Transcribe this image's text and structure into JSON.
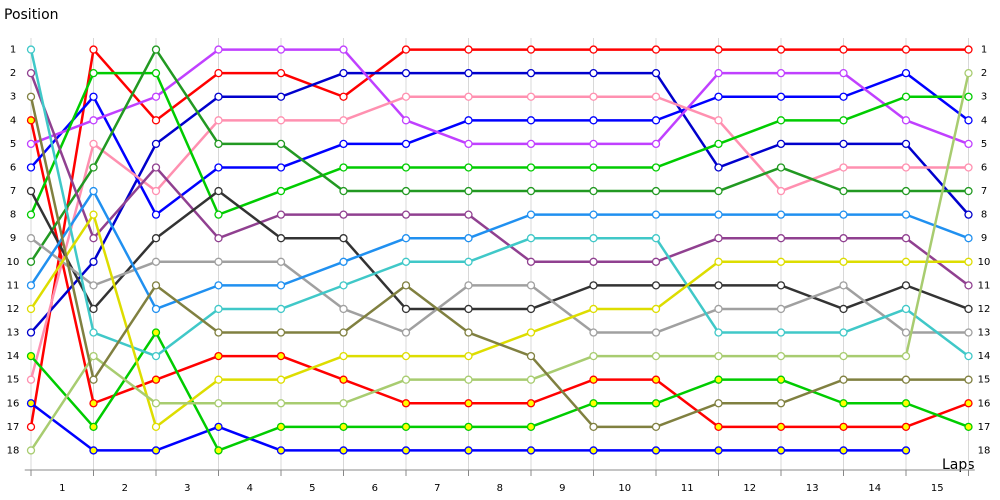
{
  "chart_data": {
    "type": "line",
    "y_label": "Position",
    "x_label": "Laps",
    "x": [
      0,
      1,
      2,
      3,
      4,
      5,
      6,
      7,
      8,
      9,
      10,
      11,
      12,
      13,
      14,
      15
    ],
    "xlim": [
      -0.1,
      15.1
    ],
    "xticks": [
      {
        "value": 0.5,
        "label": "1"
      },
      {
        "value": 1.5,
        "label": "2"
      },
      {
        "value": 2.5,
        "label": "3"
      },
      {
        "value": 3.5,
        "label": "4"
      },
      {
        "value": 4.5,
        "label": "5"
      },
      {
        "value": 5.5,
        "label": "6"
      },
      {
        "value": 6.5,
        "label": "7"
      },
      {
        "value": 7.5,
        "label": "8"
      },
      {
        "value": 8.5,
        "label": "9"
      },
      {
        "value": 9.5,
        "label": "10"
      },
      {
        "value": 10.5,
        "label": "11"
      },
      {
        "value": 11.5,
        "label": "12"
      },
      {
        "value": 12.5,
        "label": "13"
      },
      {
        "value": 13.5,
        "label": "14"
      },
      {
        "value": 14.5,
        "label": "15"
      }
    ],
    "ylim": [
      19,
      0
    ],
    "yticks": [
      1,
      2,
      3,
      4,
      5,
      6,
      7,
      8,
      9,
      10,
      11,
      12,
      13,
      14,
      15,
      16,
      17,
      18
    ],
    "grid": true,
    "series": [
      {
        "color": "#ff0000",
        "marker_color": "#ffffff",
        "values": [
          17,
          1,
          4,
          2,
          2,
          3,
          1,
          1,
          1,
          1,
          1,
          1,
          1,
          1,
          1,
          1
        ]
      },
      {
        "color": "#ff0000",
        "marker_color": "#ffff00",
        "values": [
          4,
          16,
          15,
          14,
          14,
          15,
          16,
          16,
          16,
          15,
          15,
          17,
          17,
          17,
          17,
          16
        ]
      },
      {
        "color": "#0000cc",
        "marker_color": "#ffffff",
        "values": [
          13,
          10,
          5,
          3,
          3,
          2,
          2,
          2,
          2,
          2,
          2,
          6,
          5,
          5,
          5,
          8
        ]
      },
      {
        "color": "#0000ff",
        "marker_color": "#ffffff",
        "values": [
          6,
          3,
          8,
          6,
          6,
          5,
          5,
          4,
          4,
          4,
          4,
          3,
          3,
          3,
          2,
          4
        ]
      },
      {
        "color": "#0000ff",
        "marker_color": "#ffff00",
        "values": [
          16,
          18,
          18,
          17,
          18,
          18,
          18,
          18,
          18,
          18,
          18,
          18,
          18,
          18,
          18,
          null
        ]
      },
      {
        "color": "#c040ff",
        "marker_color": "#ffffff",
        "values": [
          5,
          4,
          3,
          1,
          1,
          1,
          4,
          5,
          5,
          5,
          5,
          2,
          2,
          2,
          4,
          5
        ]
      },
      {
        "color": "#ff90b0",
        "marker_color": "#ffffff",
        "values": [
          15,
          5,
          7,
          4,
          4,
          4,
          3,
          3,
          3,
          3,
          3,
          4,
          7,
          6,
          6,
          6
        ]
      },
      {
        "color": "#00cc00",
        "marker_color": "#ffffff",
        "values": [
          8,
          2,
          2,
          8,
          7,
          6,
          6,
          6,
          6,
          6,
          6,
          5,
          4,
          4,
          3,
          3
        ]
      },
      {
        "color": "#00cc00",
        "marker_color": "#ffff00",
        "values": [
          14,
          17,
          13,
          18,
          17,
          17,
          17,
          17,
          17,
          16,
          16,
          15,
          15,
          16,
          16,
          17
        ]
      },
      {
        "color": "#229922",
        "marker_color": "#ffffff",
        "values": [
          10,
          6,
          1,
          5,
          5,
          7,
          7,
          7,
          7,
          7,
          7,
          7,
          6,
          7,
          7,
          7
        ]
      },
      {
        "color": "#904090",
        "marker_color": "#ffffff",
        "values": [
          2,
          9,
          6,
          9,
          8,
          8,
          8,
          8,
          10,
          10,
          10,
          9,
          9,
          9,
          9,
          11
        ]
      },
      {
        "color": "#333333",
        "marker_color": "#ffffff",
        "values": [
          7,
          12,
          9,
          7,
          9,
          9,
          12,
          12,
          12,
          11,
          11,
          11,
          11,
          12,
          11,
          12
        ]
      },
      {
        "color": "#a0a0a0",
        "marker_color": "#ffffff",
        "values": [
          9,
          11,
          10,
          10,
          10,
          12,
          13,
          11,
          11,
          13,
          13,
          12,
          12,
          11,
          13,
          13
        ]
      },
      {
        "color": "#2090f0",
        "marker_color": "#ffffff",
        "values": [
          11,
          7,
          12,
          11,
          11,
          10,
          9,
          9,
          8,
          8,
          8,
          8,
          8,
          8,
          8,
          9
        ]
      },
      {
        "color": "#40c8c8",
        "marker_color": "#ffffff",
        "values": [
          1,
          13,
          14,
          12,
          12,
          11,
          10,
          10,
          9,
          9,
          9,
          13,
          13,
          13,
          12,
          14
        ]
      },
      {
        "color": "#dddd00",
        "marker_color": "#ffffff",
        "values": [
          12,
          8,
          17,
          15,
          15,
          14,
          14,
          14,
          13,
          12,
          12,
          10,
          10,
          10,
          10,
          10
        ]
      },
      {
        "color": "#a8cc70",
        "marker_color": "#ffffff",
        "values": [
          18,
          14,
          16,
          16,
          16,
          16,
          15,
          15,
          15,
          14,
          14,
          14,
          14,
          14,
          14,
          2
        ]
      },
      {
        "color": "#808040",
        "marker_color": "#ffffff",
        "values": [
          3,
          15,
          11,
          13,
          13,
          13,
          11,
          13,
          14,
          17,
          17,
          16,
          16,
          15,
          15,
          15
        ]
      }
    ]
  }
}
